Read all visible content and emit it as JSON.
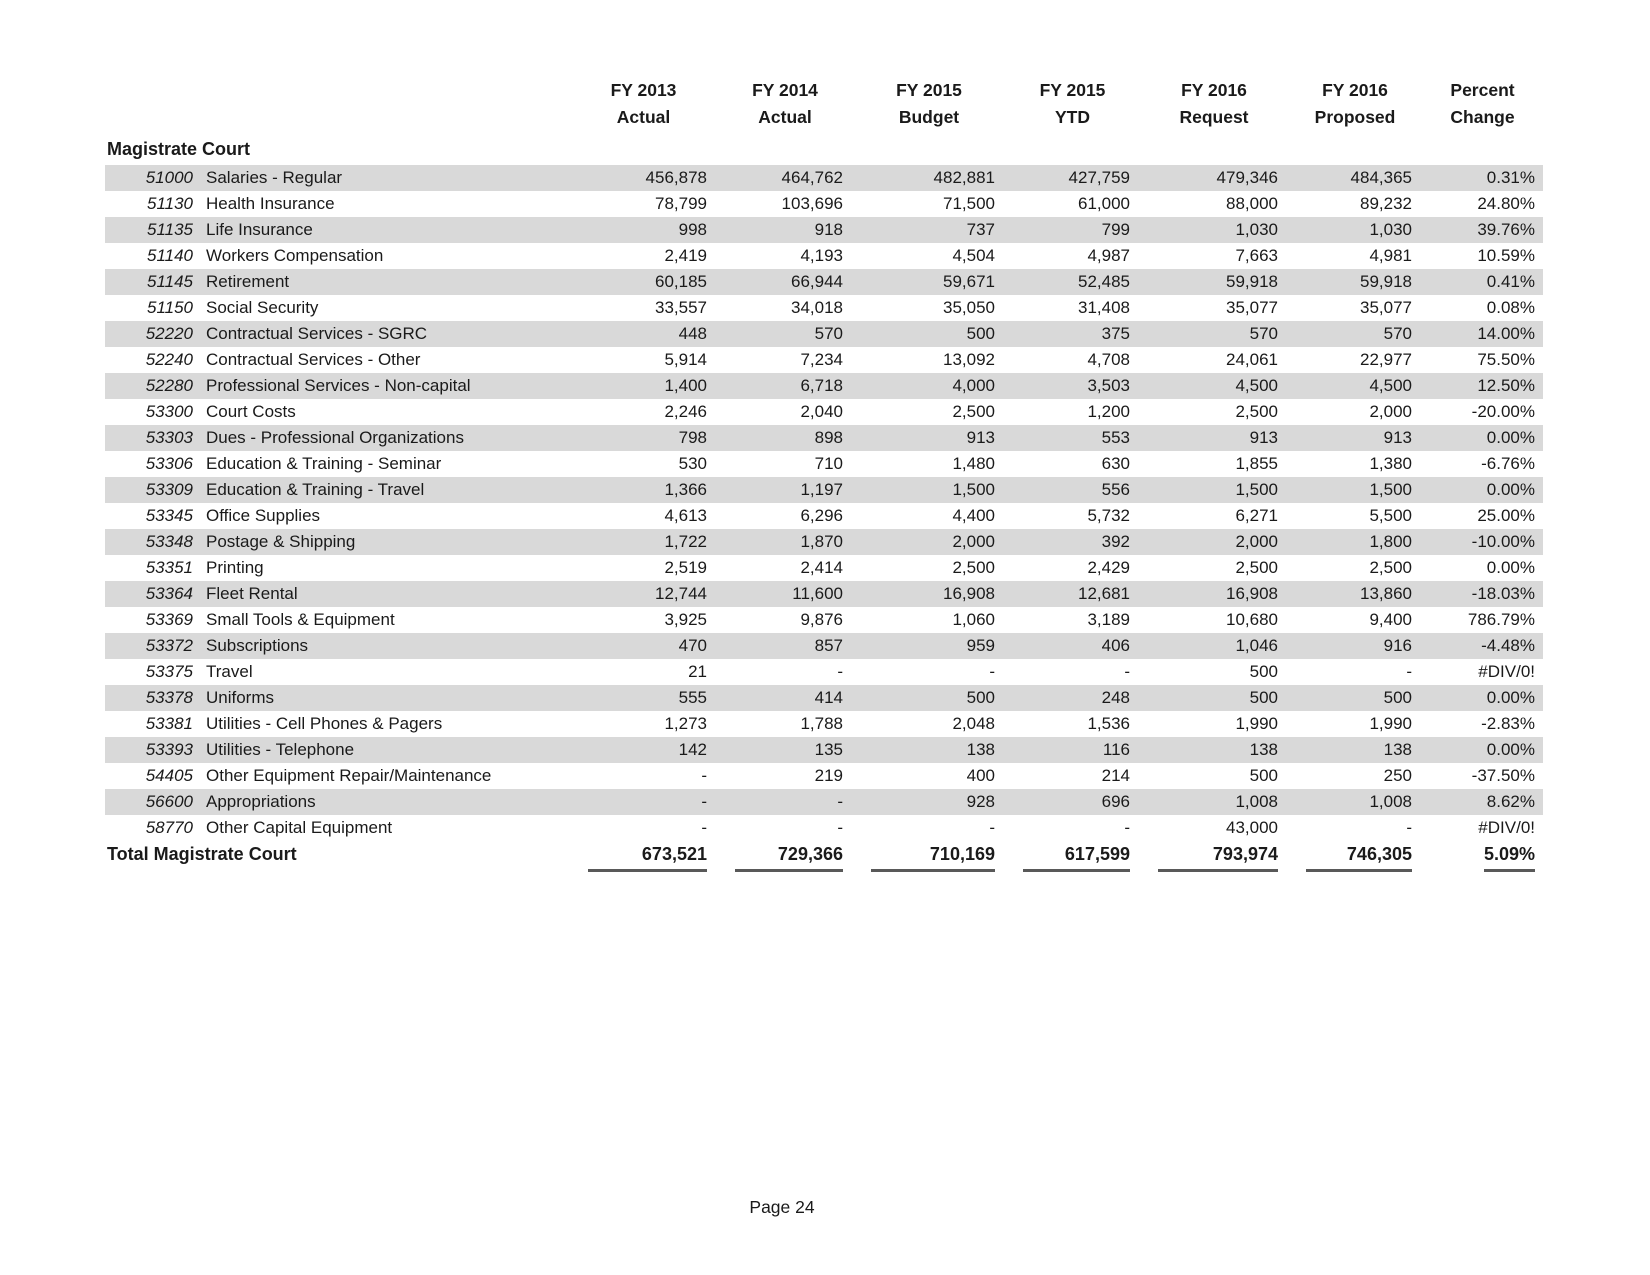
{
  "document": {
    "section_title": "Magistrate Court",
    "footer": "Page 24",
    "colors": {
      "row_stripe": "#d9d9d9",
      "text": "#1a1a1a",
      "total_rule": "#595959"
    }
  },
  "table": {
    "column_headers": [
      {
        "line1": "FY 2013",
        "line2": "Actual"
      },
      {
        "line1": "FY 2014",
        "line2": "Actual"
      },
      {
        "line1": "FY 2015",
        "line2": "Budget"
      },
      {
        "line1": "FY 2015",
        "line2": "YTD"
      },
      {
        "line1": "FY 2016",
        "line2": "Request"
      },
      {
        "line1": "FY 2016",
        "line2": "Proposed"
      },
      {
        "line1": "Percent",
        "line2": "Change"
      }
    ],
    "rows": [
      {
        "code": "51000",
        "label": "Salaries - Regular",
        "values": [
          "456,878",
          "464,762",
          "482,881",
          "427,759",
          "479,346",
          "484,365",
          "0.31%"
        ]
      },
      {
        "code": "51130",
        "label": "Health Insurance",
        "values": [
          "78,799",
          "103,696",
          "71,500",
          "61,000",
          "88,000",
          "89,232",
          "24.80%"
        ]
      },
      {
        "code": "51135",
        "label": "Life Insurance",
        "values": [
          "998",
          "918",
          "737",
          "799",
          "1,030",
          "1,030",
          "39.76%"
        ]
      },
      {
        "code": "51140",
        "label": "Workers Compensation",
        "values": [
          "2,419",
          "4,193",
          "4,504",
          "4,987",
          "7,663",
          "4,981",
          "10.59%"
        ]
      },
      {
        "code": "51145",
        "label": "Retirement",
        "values": [
          "60,185",
          "66,944",
          "59,671",
          "52,485",
          "59,918",
          "59,918",
          "0.41%"
        ]
      },
      {
        "code": "51150",
        "label": "Social Security",
        "values": [
          "33,557",
          "34,018",
          "35,050",
          "31,408",
          "35,077",
          "35,077",
          "0.08%"
        ]
      },
      {
        "code": "52220",
        "label": "Contractual Services - SGRC",
        "values": [
          "448",
          "570",
          "500",
          "375",
          "570",
          "570",
          "14.00%"
        ]
      },
      {
        "code": "52240",
        "label": "Contractual Services - Other",
        "values": [
          "5,914",
          "7,234",
          "13,092",
          "4,708",
          "24,061",
          "22,977",
          "75.50%"
        ]
      },
      {
        "code": "52280",
        "label": "Professional Services - Non-capital",
        "values": [
          "1,400",
          "6,718",
          "4,000",
          "3,503",
          "4,500",
          "4,500",
          "12.50%"
        ]
      },
      {
        "code": "53300",
        "label": "Court Costs",
        "values": [
          "2,246",
          "2,040",
          "2,500",
          "1,200",
          "2,500",
          "2,000",
          "-20.00%"
        ]
      },
      {
        "code": "53303",
        "label": "Dues - Professional Organizations",
        "values": [
          "798",
          "898",
          "913",
          "553",
          "913",
          "913",
          "0.00%"
        ]
      },
      {
        "code": "53306",
        "label": "Education & Training - Seminar",
        "values": [
          "530",
          "710",
          "1,480",
          "630",
          "1,855",
          "1,380",
          "-6.76%"
        ]
      },
      {
        "code": "53309",
        "label": "Education & Training - Travel",
        "values": [
          "1,366",
          "1,197",
          "1,500",
          "556",
          "1,500",
          "1,500",
          "0.00%"
        ]
      },
      {
        "code": "53345",
        "label": "Office Supplies",
        "values": [
          "4,613",
          "6,296",
          "4,400",
          "5,732",
          "6,271",
          "5,500",
          "25.00%"
        ]
      },
      {
        "code": "53348",
        "label": "Postage & Shipping",
        "values": [
          "1,722",
          "1,870",
          "2,000",
          "392",
          "2,000",
          "1,800",
          "-10.00%"
        ]
      },
      {
        "code": "53351",
        "label": "Printing",
        "values": [
          "2,519",
          "2,414",
          "2,500",
          "2,429",
          "2,500",
          "2,500",
          "0.00%"
        ]
      },
      {
        "code": "53364",
        "label": "Fleet Rental",
        "values": [
          "12,744",
          "11,600",
          "16,908",
          "12,681",
          "16,908",
          "13,860",
          "-18.03%"
        ]
      },
      {
        "code": "53369",
        "label": "Small Tools & Equipment",
        "values": [
          "3,925",
          "9,876",
          "1,060",
          "3,189",
          "10,680",
          "9,400",
          "786.79%"
        ]
      },
      {
        "code": "53372",
        "label": "Subscriptions",
        "values": [
          "470",
          "857",
          "959",
          "406",
          "1,046",
          "916",
          "-4.48%"
        ]
      },
      {
        "code": "53375",
        "label": "Travel",
        "values": [
          "21",
          "-",
          "-",
          "-",
          "500",
          "-",
          "#DIV/0!"
        ]
      },
      {
        "code": "53378",
        "label": "Uniforms",
        "values": [
          "555",
          "414",
          "500",
          "248",
          "500",
          "500",
          "0.00%"
        ]
      },
      {
        "code": "53381",
        "label": "Utilities - Cell Phones & Pagers",
        "values": [
          "1,273",
          "1,788",
          "2,048",
          "1,536",
          "1,990",
          "1,990",
          "-2.83%"
        ]
      },
      {
        "code": "53393",
        "label": "Utilities - Telephone",
        "values": [
          "142",
          "135",
          "138",
          "116",
          "138",
          "138",
          "0.00%"
        ]
      },
      {
        "code": "54405",
        "label": "Other Equipment Repair/Maintenance",
        "values": [
          "-",
          "219",
          "400",
          "214",
          "500",
          "250",
          "-37.50%"
        ]
      },
      {
        "code": "56600",
        "label": "Appropriations",
        "values": [
          "-",
          "-",
          "928",
          "696",
          "1,008",
          "1,008",
          "8.62%"
        ]
      },
      {
        "code": "58770",
        "label": "Other Capital Equipment",
        "values": [
          "-",
          "-",
          "-",
          "-",
          "43,000",
          "-",
          "#DIV/0!"
        ]
      }
    ],
    "total": {
      "label": "Total Magistrate Court",
      "values": [
        "673,521",
        "729,366",
        "710,169",
        "617,599",
        "793,974",
        "746,305",
        "5.09%"
      ]
    }
  }
}
